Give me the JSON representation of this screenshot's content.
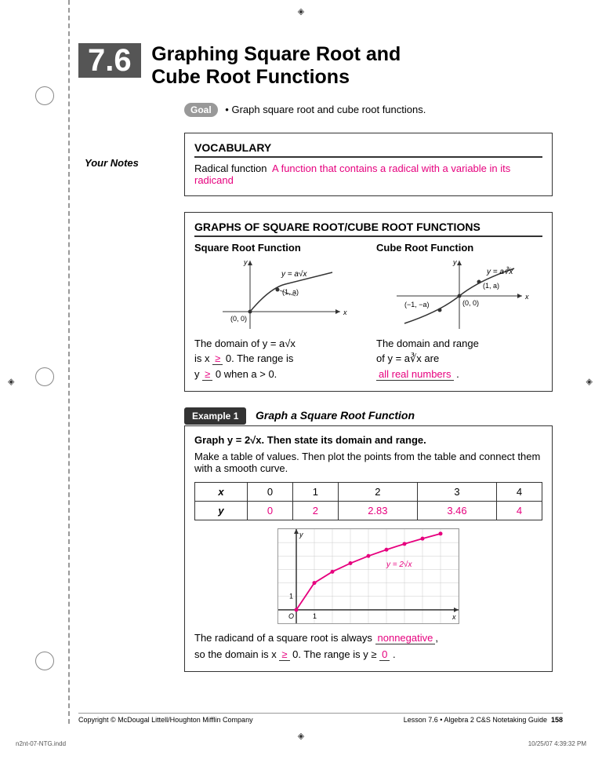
{
  "section_number": "7.6",
  "title_line1": "Graphing Square Root and",
  "title_line2": "Cube Root Functions",
  "goal_label": "Goal",
  "goal_text": "• Graph square root and cube root functions.",
  "your_notes": "Your Notes",
  "vocab": {
    "heading": "VOCABULARY",
    "term": "Radical function",
    "definition": "A function that contains a radical with a variable in its radicand"
  },
  "graphs_box": {
    "heading": "GRAPHS OF SQUARE ROOT/CUBE ROOT FUNCTIONS",
    "sq": {
      "head": "Square Root Function",
      "eq_label": "y = a√x",
      "pt1": "(1, a)",
      "pt0": "(0, 0)",
      "text1": "The domain of y = a√x",
      "text2": "is x ",
      "sym": "≥",
      "text3": " 0. The range is",
      "text4": "y ",
      "text5": " 0 when a > 0."
    },
    "cb": {
      "head": "Cube Root Function",
      "eq_label": "y = a∛x",
      "pt1": "(1, a)",
      "ptn": "(−1, −a)",
      "pt0": "(0, 0)",
      "text1": "The domain and range",
      "text2": "of y = a∛x are",
      "answer": "all real numbers"
    }
  },
  "example": {
    "tab": "Example 1",
    "title": "Graph a Square Root Function",
    "question": "Graph y = 2√x. Then state its domain and range.",
    "instr": "Make a table of values. Then plot the points from the table and connect them with a smooth curve.",
    "table": {
      "xlabel": "x",
      "ylabel": "y",
      "x": [
        "0",
        "1",
        "2",
        "3",
        "4"
      ],
      "y": [
        "0",
        "2",
        "2.83",
        "3.46",
        "4"
      ]
    },
    "chart": {
      "curve_label": "y = 2√x",
      "points_x": [
        0,
        1,
        2,
        3,
        4,
        5,
        6,
        7,
        8
      ],
      "points_y": [
        0,
        2,
        2.83,
        3.46,
        4,
        4.47,
        4.9,
        5.29,
        5.66
      ],
      "point_color": "#e6007e",
      "curve_color": "#e6007e",
      "grid_color": "#cccccc",
      "axis_color": "#333333",
      "xlim": [
        -1,
        9
      ],
      "ylim": [
        -1,
        6
      ]
    },
    "concl1": "The radicand of a square root is always ",
    "ans1": "nonnegative",
    "concl2": ",",
    "concl3": "so the domain is x ",
    "sym": "≥",
    "concl4": " 0. The range is y ≥ ",
    "ans2": "0",
    "concl5": " ."
  },
  "footer": {
    "copyright": "Copyright © McDougal Littell/Houghton Mifflin Company",
    "lesson": "Lesson 7.6 • Algebra 2 C&S Notetaking Guide",
    "page": "158"
  },
  "slug": {
    "file": "n2nt-07-NTG.indd",
    "date": "10/25/07  4:39:32 PM"
  },
  "colors": {
    "pink": "#e6007e",
    "grey_badge": "#999999",
    "dark": "#333333"
  }
}
